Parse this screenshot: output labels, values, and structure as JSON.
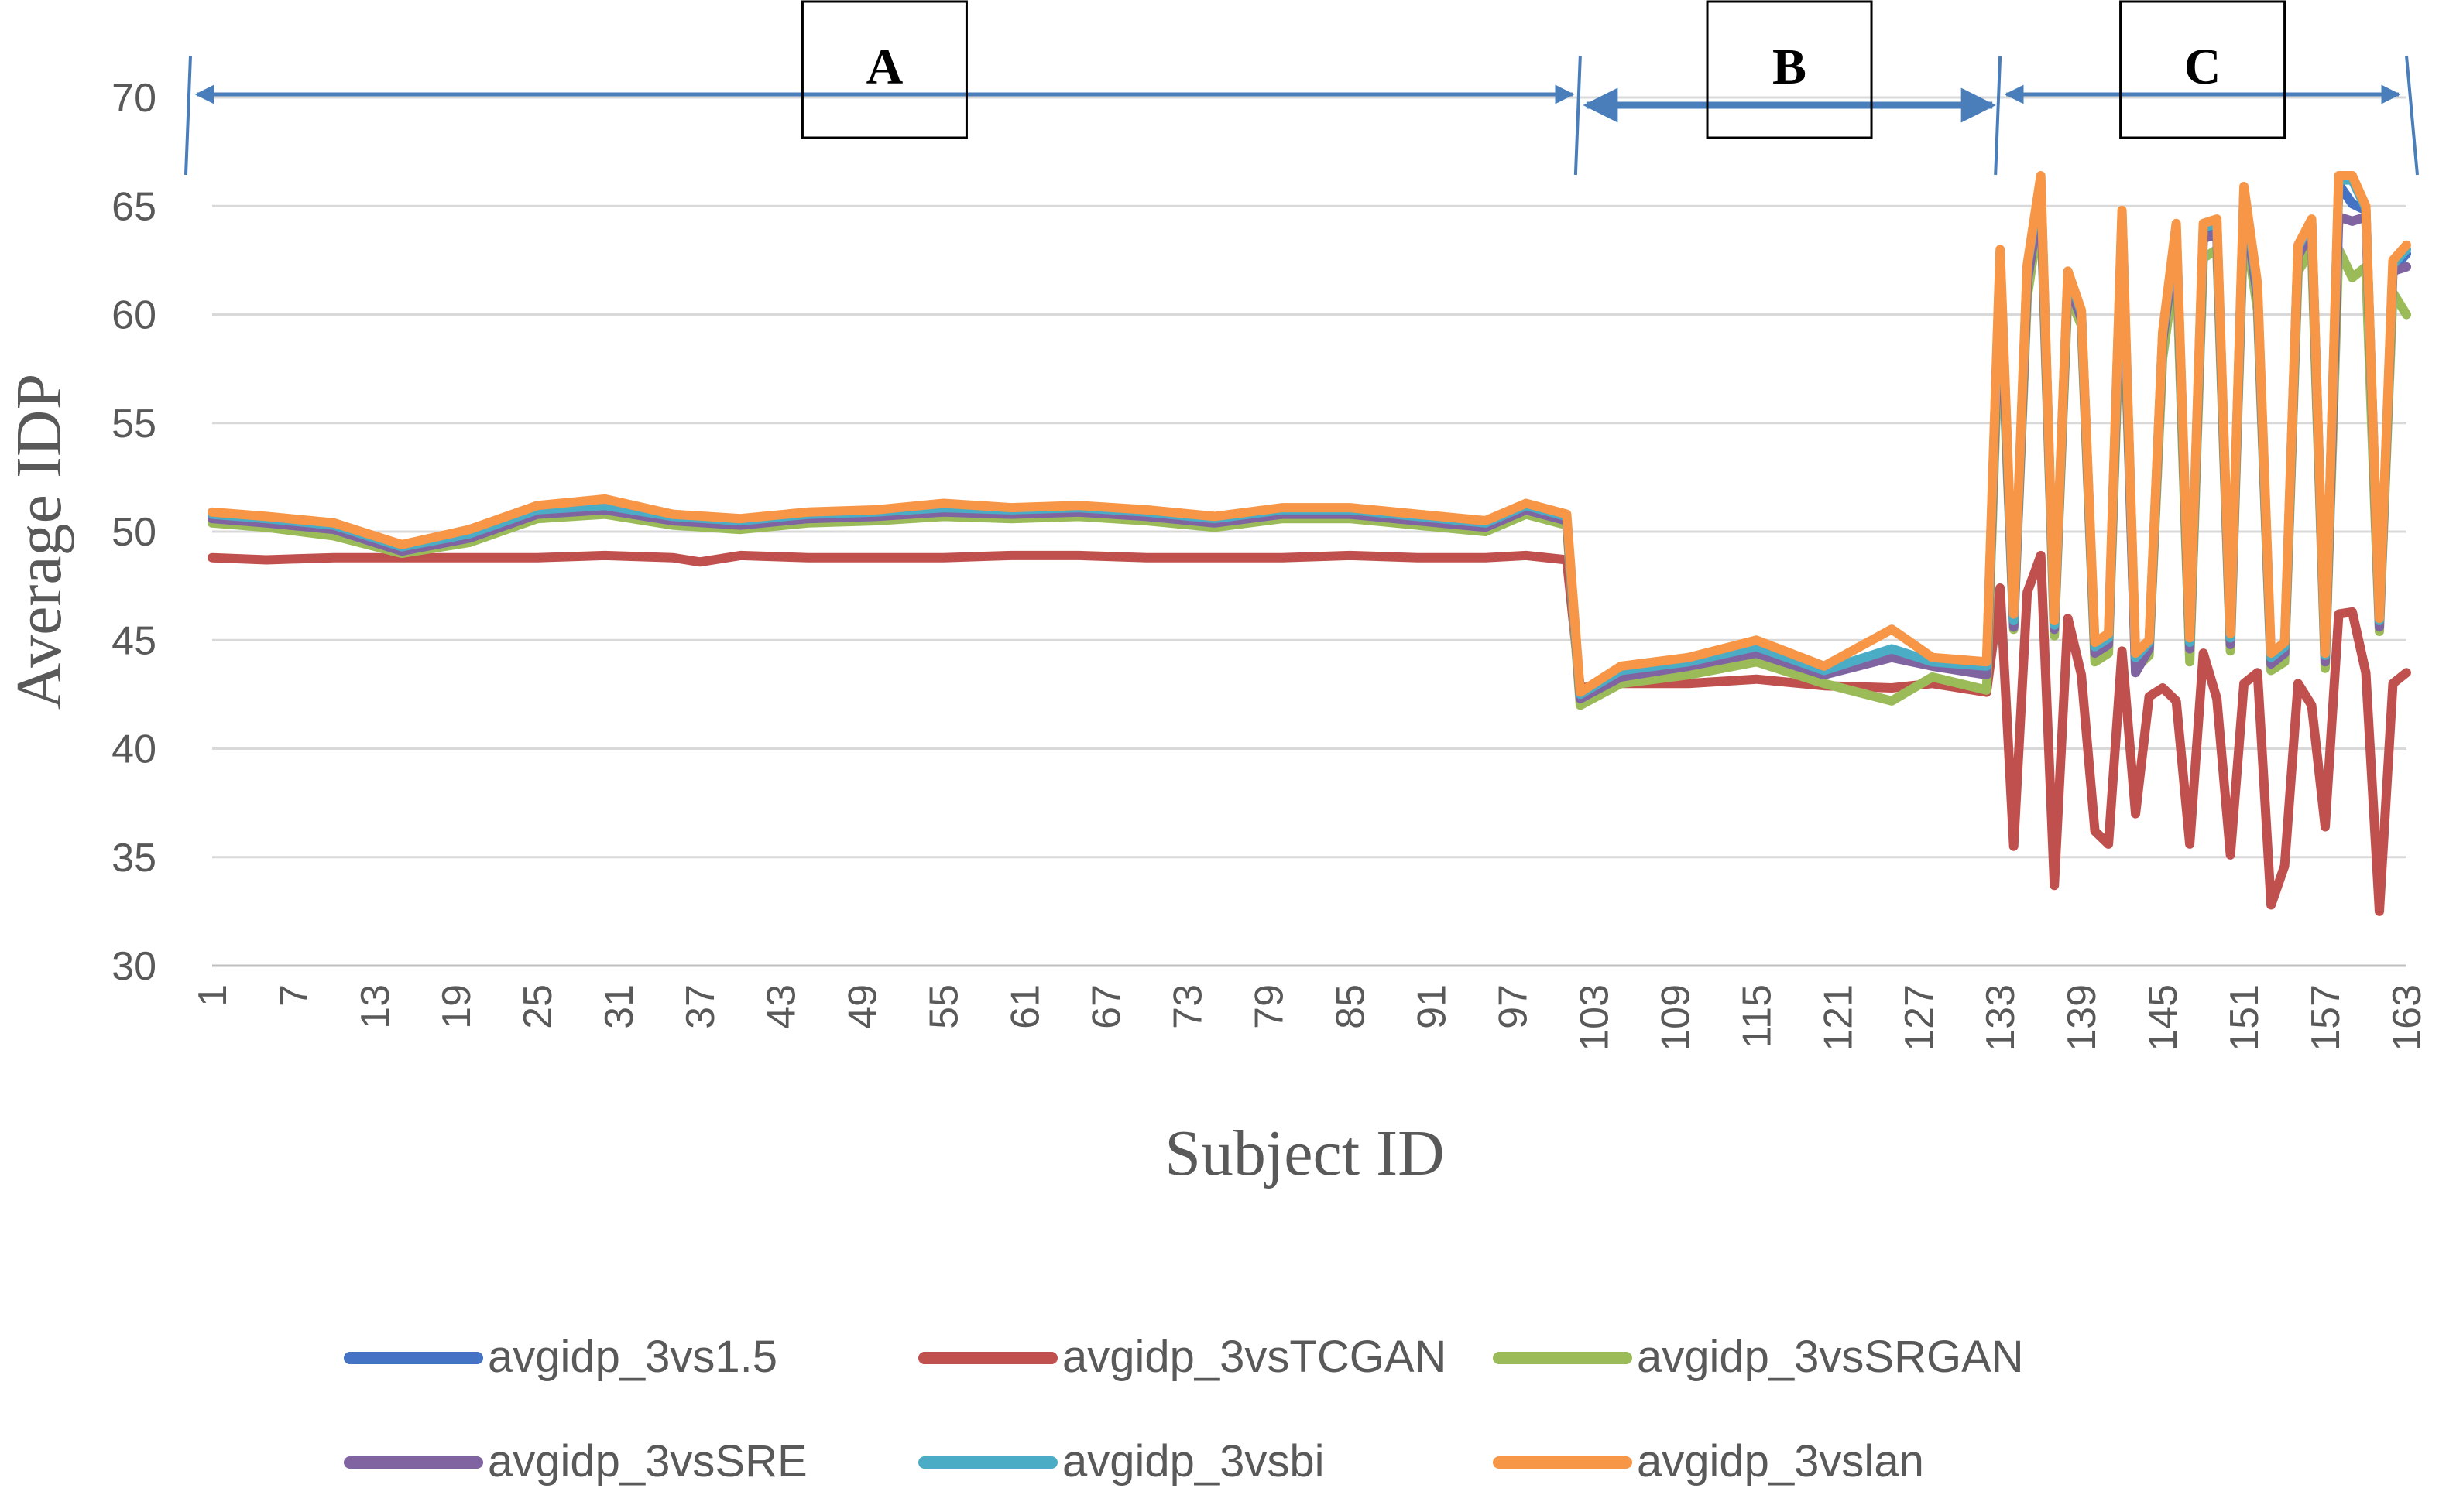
{
  "chart_data": {
    "type": "line",
    "title": "",
    "xlabel": "Subject ID",
    "ylabel": "Average IDP",
    "ylim": [
      30,
      70
    ],
    "yticks": [
      30,
      35,
      40,
      45,
      50,
      55,
      60,
      65,
      70
    ],
    "xlim": [
      1,
      163
    ],
    "xticks": [
      1,
      7,
      13,
      19,
      25,
      31,
      37,
      43,
      49,
      55,
      61,
      67,
      73,
      79,
      85,
      91,
      97,
      103,
      109,
      115,
      121,
      127,
      133,
      139,
      145,
      151,
      157,
      163
    ],
    "grid": "horizontal",
    "legend_position": "bottom",
    "segments": [
      {
        "label": "A",
        "from": 1,
        "to": 102
      },
      {
        "label": "B",
        "from": 102,
        "to": 133
      },
      {
        "label": "C",
        "from": 133,
        "to": 163
      }
    ],
    "series": [
      {
        "name": "avgidp_3vs1.5",
        "color": "#4472C4",
        "x": [
          1,
          5,
          10,
          15,
          20,
          25,
          30,
          35,
          40,
          45,
          50,
          55,
          60,
          65,
          70,
          75,
          80,
          85,
          90,
          95,
          98,
          101,
          102,
          105,
          110,
          115,
          120,
          125,
          128,
          132,
          133,
          134,
          135,
          136,
          137,
          138,
          139,
          140,
          141,
          142,
          143,
          144,
          145,
          146,
          147,
          148,
          149,
          150,
          151,
          152,
          153,
          154,
          155,
          156,
          157,
          158,
          159,
          160,
          161,
          162,
          163
        ],
        "y": [
          50.7,
          50.5,
          50.2,
          49.2,
          49.8,
          50.9,
          51.1,
          50.6,
          50.4,
          50.7,
          50.8,
          51.0,
          50.9,
          51.0,
          50.8,
          50.5,
          50.9,
          50.9,
          50.6,
          50.3,
          51.1,
          50.6,
          42.4,
          43.4,
          43.9,
          44.5,
          43.5,
          44.3,
          43.9,
          43.6,
          62.5,
          45.8,
          62.0,
          66.1,
          45.6,
          61.7,
          60.0,
          44.6,
          45.0,
          64.4,
          44.1,
          44.8,
          59.0,
          63.8,
          44.8,
          63.8,
          64.0,
          45.0,
          65.5,
          61.0,
          44.1,
          44.6,
          63.0,
          64.2,
          44.2,
          66.0,
          65.1,
          64.8,
          45.8,
          62.1,
          62.8
        ]
      },
      {
        "name": "avgidp_3vsTCGAN",
        "color": "#C0504D",
        "x": [
          1,
          5,
          10,
          15,
          20,
          25,
          30,
          35,
          37,
          40,
          45,
          50,
          55,
          60,
          65,
          70,
          75,
          80,
          85,
          90,
          95,
          98,
          101,
          102,
          105,
          110,
          115,
          120,
          125,
          128,
          132,
          133,
          134,
          135,
          136,
          137,
          138,
          139,
          140,
          141,
          142,
          143,
          144,
          145,
          146,
          147,
          148,
          149,
          150,
          151,
          152,
          153,
          154,
          155,
          156,
          157,
          158,
          159,
          160,
          161,
          162,
          163
        ],
        "y": [
          48.8,
          48.7,
          48.8,
          48.8,
          48.8,
          48.8,
          48.9,
          48.8,
          48.6,
          48.9,
          48.8,
          48.8,
          48.8,
          48.9,
          48.9,
          48.8,
          48.8,
          48.8,
          48.9,
          48.8,
          48.8,
          48.9,
          48.7,
          42.8,
          43.0,
          43.0,
          43.2,
          42.9,
          42.8,
          43.0,
          42.6,
          47.4,
          35.5,
          47.2,
          48.9,
          33.7,
          46.0,
          43.4,
          36.2,
          35.6,
          44.5,
          37.0,
          42.4,
          42.8,
          42.2,
          35.6,
          44.4,
          42.3,
          35.1,
          43.0,
          43.5,
          32.8,
          34.6,
          43.0,
          42.0,
          36.4,
          46.2,
          46.3,
          43.5,
          32.5,
          43.0,
          43.5
        ]
      },
      {
        "name": "avgidp_3vsSRGAN",
        "color": "#9BBB59",
        "x": [
          1,
          5,
          10,
          15,
          20,
          25,
          30,
          35,
          40,
          45,
          50,
          55,
          60,
          65,
          70,
          75,
          80,
          85,
          90,
          95,
          98,
          101,
          102,
          105,
          110,
          115,
          120,
          125,
          128,
          132,
          133,
          134,
          135,
          136,
          137,
          138,
          139,
          140,
          141,
          142,
          143,
          144,
          145,
          146,
          147,
          148,
          149,
          150,
          151,
          152,
          153,
          154,
          155,
          156,
          157,
          158,
          159,
          160,
          161,
          162,
          163
        ],
        "y": [
          50.4,
          50.2,
          49.8,
          49.0,
          49.5,
          50.6,
          50.8,
          50.3,
          50.1,
          50.4,
          50.5,
          50.7,
          50.6,
          50.7,
          50.5,
          50.2,
          50.6,
          50.6,
          50.3,
          50.0,
          50.8,
          50.3,
          42.0,
          43.0,
          43.4,
          44.0,
          43.0,
          42.2,
          43.3,
          42.7,
          61.0,
          45.5,
          60.8,
          65.0,
          45.2,
          61.0,
          59.5,
          44.0,
          44.4,
          63.0,
          43.7,
          44.3,
          58.0,
          62.5,
          44.0,
          62.6,
          63.0,
          44.5,
          64.5,
          60.2,
          43.6,
          44.0,
          62.0,
          63.0,
          43.7,
          63.0,
          61.7,
          62.2,
          45.4,
          61.0,
          60.0
        ]
      },
      {
        "name": "avgidp_3vsSRE",
        "color": "#8064A2",
        "x": [
          1,
          5,
          10,
          15,
          20,
          25,
          30,
          35,
          40,
          45,
          50,
          55,
          60,
          65,
          70,
          75,
          80,
          85,
          90,
          95,
          98,
          101,
          102,
          105,
          110,
          115,
          120,
          125,
          128,
          132,
          133,
          134,
          135,
          136,
          137,
          138,
          139,
          140,
          141,
          142,
          143,
          144,
          145,
          146,
          147,
          148,
          149,
          150,
          151,
          152,
          153,
          154,
          155,
          156,
          157,
          158,
          159,
          160,
          161,
          162,
          163
        ],
        "y": [
          50.6,
          50.4,
          50.1,
          49.1,
          49.7,
          50.8,
          51.0,
          50.5,
          50.3,
          50.6,
          50.7,
          50.9,
          50.8,
          50.9,
          50.7,
          50.4,
          50.8,
          50.8,
          50.5,
          50.2,
          51.0,
          50.5,
          42.3,
          43.3,
          43.8,
          44.4,
          43.4,
          44.2,
          43.8,
          43.4,
          62.0,
          45.6,
          61.5,
          65.5,
          45.5,
          61.5,
          59.8,
          44.4,
          44.8,
          64.0,
          43.5,
          44.6,
          58.8,
          63.5,
          44.6,
          63.5,
          63.7,
          44.8,
          65.2,
          60.8,
          43.9,
          44.4,
          62.7,
          63.9,
          44.0,
          64.5,
          64.3,
          64.5,
          45.6,
          62.0,
          62.2
        ]
      },
      {
        "name": "avgidp_3vsbi",
        "color": "#4BACC6",
        "x": [
          1,
          5,
          10,
          15,
          20,
          25,
          30,
          35,
          40,
          45,
          50,
          55,
          60,
          65,
          70,
          75,
          80,
          85,
          90,
          95,
          98,
          101,
          102,
          105,
          110,
          115,
          120,
          125,
          128,
          132,
          133,
          134,
          135,
          136,
          137,
          138,
          139,
          140,
          141,
          142,
          143,
          144,
          145,
          146,
          147,
          148,
          149,
          150,
          151,
          152,
          153,
          154,
          155,
          156,
          157,
          158,
          159,
          160,
          161,
          162,
          163
        ],
        "y": [
          50.8,
          50.6,
          50.3,
          49.3,
          49.9,
          51.0,
          51.2,
          50.7,
          50.5,
          50.8,
          50.9,
          51.1,
          51.0,
          51.1,
          50.9,
          50.6,
          51.0,
          51.0,
          50.7,
          50.4,
          51.2,
          50.7,
          42.5,
          43.6,
          44.0,
          44.7,
          43.6,
          44.6,
          44.0,
          43.8,
          62.8,
          45.9,
          62.2,
          66.2,
          45.7,
          61.9,
          60.1,
          44.7,
          45.1,
          64.6,
          44.2,
          44.9,
          59.1,
          64.0,
          44.9,
          64.0,
          64.2,
          45.1,
          65.7,
          61.2,
          44.2,
          44.7,
          63.1,
          64.3,
          44.3,
          66.2,
          66.2,
          64.9,
          45.9,
          62.3,
          63.0
        ]
      },
      {
        "name": "avgidp_3vslan",
        "color": "#F79646",
        "x": [
          1,
          5,
          10,
          15,
          20,
          25,
          30,
          35,
          40,
          45,
          50,
          55,
          60,
          65,
          70,
          75,
          80,
          85,
          90,
          95,
          98,
          101,
          102,
          105,
          110,
          115,
          120,
          125,
          128,
          132,
          133,
          134,
          135,
          136,
          137,
          138,
          139,
          140,
          141,
          142,
          143,
          144,
          145,
          146,
          147,
          148,
          149,
          150,
          151,
          152,
          153,
          154,
          155,
          156,
          157,
          158,
          159,
          160,
          161,
          162,
          163
        ],
        "y": [
          50.9,
          50.7,
          50.4,
          49.4,
          50.1,
          51.2,
          51.5,
          50.8,
          50.6,
          50.9,
          51.0,
          51.3,
          51.1,
          51.2,
          51.0,
          50.7,
          51.1,
          51.1,
          50.8,
          50.5,
          51.3,
          50.8,
          42.6,
          43.8,
          44.2,
          45.0,
          43.8,
          45.5,
          44.2,
          44.0,
          63.0,
          46.2,
          62.3,
          66.4,
          45.9,
          62.0,
          60.2,
          44.9,
          45.3,
          64.8,
          44.4,
          45.0,
          59.2,
          64.2,
          45.1,
          64.2,
          64.4,
          45.3,
          65.9,
          61.4,
          44.4,
          44.9,
          63.2,
          64.4,
          44.4,
          66.4,
          66.4,
          65.0,
          46.0,
          62.5,
          63.2
        ]
      }
    ]
  }
}
